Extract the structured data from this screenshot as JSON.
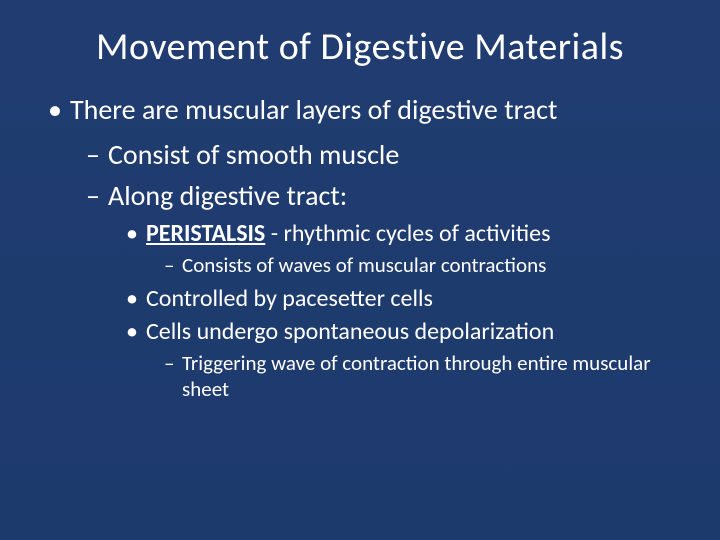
{
  "slide": {
    "background_color": "#1f3b6f",
    "text_color": "#ffffff",
    "title_fontsize": 38,
    "lvl1_fontsize": 28,
    "lvl2_fontsize": 28,
    "lvl3_fontsize": 24,
    "lvl4_fontsize": 21,
    "title": "Movement of Digestive Materials",
    "bullets": {
      "b1": "There are muscular layers of digestive tract",
      "b1_1": "Consist of smooth muscle",
      "b1_2": "Along digestive tract:",
      "b1_2_1_term": "PERISTALSIS",
      "b1_2_1_dash": " -  ",
      "b1_2_1_rest": "rhythmic cycles of activities",
      "b1_2_1_1": "Consists of waves of muscular contractions",
      "b1_2_2": "Controlled by pacesetter cells",
      "b1_2_3": "Cells undergo spontaneous depolarization",
      "b1_2_3_1": "Triggering wave of contraction through entire muscular sheet"
    }
  }
}
